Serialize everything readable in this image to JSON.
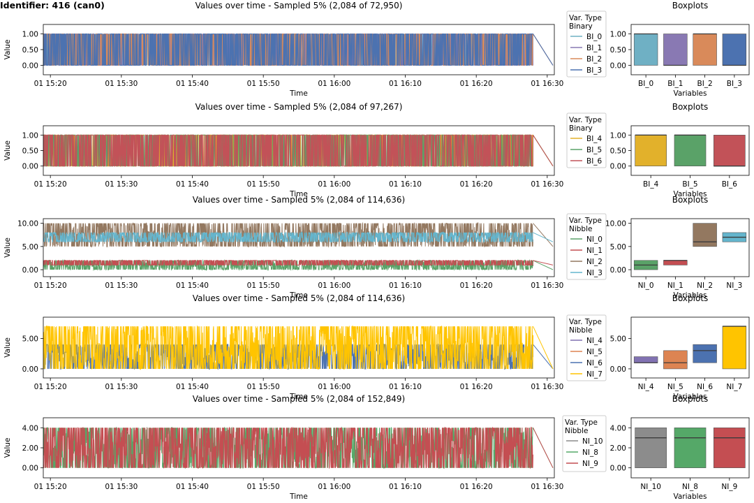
{
  "figure_title": "Identifier: 416 (can0)",
  "colors": {
    "BI_0": "#6fb0c4",
    "BI_1": "#8979b3",
    "BI_2": "#d98a5a",
    "BI_3": "#4c72b0",
    "BI_4": "#e2b12b",
    "BI_5": "#5aa268",
    "BI_6": "#c25258",
    "NI_0": "#5aa268",
    "NI_1": "#c44e52",
    "NI_2": "#937860",
    "NI_3": "#64b5cd",
    "NI_4": "#8172b2",
    "NI_5": "#dd8452",
    "NI_6": "#4c72b0",
    "NI_7": "#ffc400",
    "NI_10": "#8c8c8c",
    "NI_8": "#55a868",
    "NI_9": "#c44e52"
  },
  "chart_data": [
    {
      "type": "line",
      "title": "Values over time - Sampled 5% (2,084 of 72,950)",
      "xlabel": "Time",
      "ylabel": "Value",
      "xlim": [
        "01 15:19",
        "01 16:31"
      ],
      "xticks": [
        "01 15:20",
        "01 15:30",
        "01 15:40",
        "01 15:50",
        "01 16:00",
        "01 16:10",
        "01 16:20",
        "01 16:30"
      ],
      "ylim": [
        -0.3,
        1.3
      ],
      "yticks": [
        "0.00",
        "0.50",
        "1.00"
      ],
      "data_end": "01 16:28",
      "final_values": [
        0,
        1
      ],
      "legend": {
        "title": "Var. Type",
        "subtitle": "Binary",
        "entries": [
          "BI_0",
          "BI_1",
          "BI_2",
          "BI_3"
        ],
        "placement": "outside-right"
      },
      "series": [
        {
          "name": "BI_0",
          "range": [
            0,
            1
          ]
        },
        {
          "name": "BI_1",
          "range": [
            0,
            1
          ]
        },
        {
          "name": "BI_2",
          "range": [
            0,
            1
          ]
        },
        {
          "name": "BI_3",
          "range": [
            0,
            1
          ]
        }
      ]
    },
    {
      "type": "line",
      "title": "Values over time - Sampled 5% (2,084 of 97,267)",
      "xlabel": "Time",
      "ylabel": "Value",
      "xlim": [
        "01 15:19",
        "01 16:31"
      ],
      "xticks": [
        "01 15:20",
        "01 15:30",
        "01 15:40",
        "01 15:50",
        "01 16:00",
        "01 16:10",
        "01 16:20",
        "01 16:30"
      ],
      "ylim": [
        -0.3,
        1.3
      ],
      "yticks": [
        "0.00",
        "0.50",
        "1.00"
      ],
      "data_end": "01 16:28",
      "final_values": [
        0,
        1
      ],
      "legend": {
        "title": "Var. Type",
        "subtitle": "Binary",
        "entries": [
          "BI_4",
          "BI_5",
          "BI_6"
        ],
        "placement": "outside-right"
      },
      "series": [
        {
          "name": "BI_4",
          "range": [
            0,
            1
          ]
        },
        {
          "name": "BI_5",
          "range": [
            0,
            1
          ]
        },
        {
          "name": "BI_6",
          "range": [
            0,
            1
          ]
        }
      ]
    },
    {
      "type": "line",
      "title": "Values over time - Sampled 5% (2,084 of 114,636)",
      "xlabel": "Time",
      "ylabel": "Value",
      "xlim": [
        "01 15:19",
        "01 16:31"
      ],
      "xticks": [
        "01 15:20",
        "01 15:30",
        "01 15:40",
        "01 15:50",
        "01 16:00",
        "01 16:10",
        "01 16:20",
        "01 16:30"
      ],
      "ylim": [
        -1.5,
        11
      ],
      "yticks": [
        "0.00",
        "5.00",
        "10.00"
      ],
      "data_end": "01 16:28",
      "legend": {
        "title": "Var. Type",
        "subtitle": "Nibble",
        "entries": [
          "NI_0",
          "NI_1",
          "NI_2",
          "NI_3"
        ],
        "placement": "outside-right"
      },
      "series": [
        {
          "name": "NI_2",
          "range": [
            5,
            10
          ]
        },
        {
          "name": "NI_3",
          "range": [
            6,
            8
          ]
        },
        {
          "name": "NI_0",
          "range": [
            0,
            2
          ]
        },
        {
          "name": "NI_1",
          "range": [
            1,
            2
          ]
        }
      ]
    },
    {
      "type": "line",
      "title": "Values over time - Sampled 5% (2,084 of 114,636)",
      "xlabel": "Time",
      "ylabel": "Value",
      "xlim": [
        "01 15:19",
        "01 16:31"
      ],
      "xticks": [
        "01 15:20",
        "01 15:30",
        "01 15:40",
        "01 15:50",
        "01 16:00",
        "01 16:10",
        "01 16:20",
        "01 16:30"
      ],
      "ylim": [
        -1.5,
        8.5
      ],
      "yticks": [
        "0.00",
        "5.00"
      ],
      "data_end": "01 16:28",
      "legend": {
        "title": "Var. Type",
        "subtitle": "Nibble",
        "entries": [
          "NI_4",
          "NI_5",
          "NI_6",
          "NI_7"
        ],
        "placement": "outside-right"
      },
      "series": [
        {
          "name": "NI_6",
          "range": [
            0,
            4
          ]
        },
        {
          "name": "NI_7",
          "range": [
            0,
            7
          ]
        }
      ]
    },
    {
      "type": "line",
      "title": "Values over time - Sampled 5% (2,084 of 152,849)",
      "xlabel": "Time",
      "ylabel": "Value",
      "xlim": [
        "01 15:19",
        "01 16:31"
      ],
      "xticks": [
        "01 15:20",
        "01 15:30",
        "01 15:40",
        "01 15:50",
        "01 16:00",
        "01 16:10",
        "01 16:20",
        "01 16:30"
      ],
      "ylim": [
        -1,
        5
      ],
      "yticks": [
        "0.00",
        "2.00",
        "4.00"
      ],
      "data_end": "01 16:28",
      "legend": {
        "title": "Var. Type",
        "subtitle": "Nibble",
        "entries": [
          "NI_10",
          "NI_8",
          "NI_9"
        ],
        "placement": "outside-right"
      },
      "series": [
        {
          "name": "NI_8",
          "range": [
            0,
            4
          ]
        },
        {
          "name": "NI_9",
          "range": [
            0,
            4
          ]
        }
      ]
    },
    {
      "type": "box",
      "title": "Boxplots",
      "xlabel": "Variables",
      "ylim": [
        -0.3,
        1.3
      ],
      "yticks": [
        "0.00",
        "0.50",
        "1.00"
      ],
      "categories": [
        "BI_0",
        "BI_1",
        "BI_2",
        "BI_3"
      ],
      "boxes": [
        {
          "name": "BI_0",
          "q1": 0,
          "median": 1,
          "q3": 1
        },
        {
          "name": "BI_1",
          "q1": 0,
          "median": 0,
          "q3": 1
        },
        {
          "name": "BI_2",
          "q1": 0,
          "median": 1,
          "q3": 1
        },
        {
          "name": "BI_3",
          "q1": 0,
          "median": 0,
          "q3": 1
        }
      ]
    },
    {
      "type": "box",
      "title": "Boxplots",
      "xlabel": "Variables",
      "ylim": [
        -0.3,
        1.3
      ],
      "yticks": [
        "0.00",
        "0.50",
        "1.00"
      ],
      "categories": [
        "BI_4",
        "BI_5",
        "BI_6"
      ],
      "boxes": [
        {
          "name": "BI_4",
          "q1": 0,
          "median": 1,
          "q3": 1
        },
        {
          "name": "BI_5",
          "q1": 0,
          "median": 1,
          "q3": 1
        },
        {
          "name": "BI_6",
          "q1": 0,
          "median": 0,
          "q3": 1
        }
      ]
    },
    {
      "type": "box",
      "title": "Boxplots",
      "xlabel": "Variables",
      "ylim": [
        -1.5,
        11
      ],
      "yticks": [
        "0.00",
        "5.00",
        "10.00"
      ],
      "categories": [
        "NI_0",
        "NI_1",
        "NI_2",
        "NI_3"
      ],
      "boxes": [
        {
          "name": "NI_0",
          "q1": 0,
          "median": 1,
          "q3": 2
        },
        {
          "name": "NI_1",
          "q1": 1,
          "median": 2,
          "q3": 2
        },
        {
          "name": "NI_2",
          "q1": 5,
          "median": 6,
          "q3": 10
        },
        {
          "name": "NI_3",
          "q1": 6,
          "median": 7,
          "q3": 8
        }
      ]
    },
    {
      "type": "box",
      "title": "Boxplots",
      "xlabel": "Variables",
      "ylim": [
        -1.5,
        8.5
      ],
      "yticks": [
        "0.00",
        "5.00"
      ],
      "categories": [
        "NI_4",
        "NI_5",
        "NI_6",
        "NI_7"
      ],
      "boxes": [
        {
          "name": "NI_4",
          "q1": 1,
          "median": 1,
          "q3": 2
        },
        {
          "name": "NI_5",
          "q1": 0,
          "median": 1,
          "q3": 3
        },
        {
          "name": "NI_6",
          "q1": 1,
          "median": 3,
          "q3": 4
        },
        {
          "name": "NI_7",
          "q1": 0,
          "median": 7,
          "q3": 7
        }
      ]
    },
    {
      "type": "box",
      "title": "Boxplots",
      "xlabel": "Variables",
      "ylim": [
        -1,
        5
      ],
      "yticks": [
        "0.00",
        "2.00",
        "4.00"
      ],
      "categories": [
        "NI_10",
        "NI_8",
        "NI_9"
      ],
      "boxes": [
        {
          "name": "NI_10",
          "q1": 0,
          "median": 3,
          "q3": 4
        },
        {
          "name": "NI_8",
          "q1": 0,
          "median": 3,
          "q3": 4
        },
        {
          "name": "NI_9",
          "q1": 0,
          "median": 3,
          "q3": 4
        }
      ]
    }
  ]
}
